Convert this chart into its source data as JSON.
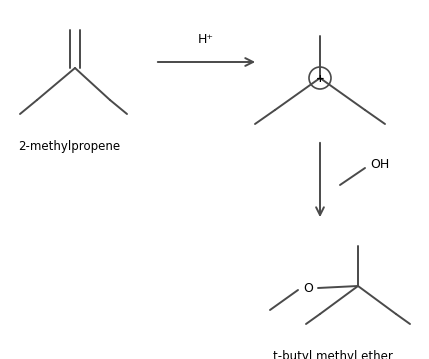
{
  "bg_color": "#ffffff",
  "line_color": "#4a4a4a",
  "text_color": "#000000",
  "fig_width": 4.29,
  "fig_height": 3.59,
  "dpi": 100,
  "label_2methylpropene": "2-methylpropene",
  "label_hplus": "H⁺",
  "label_OH": "OH",
  "label_O": "O",
  "label_product": "t-butyl methyl ether",
  "line_width": 1.4
}
